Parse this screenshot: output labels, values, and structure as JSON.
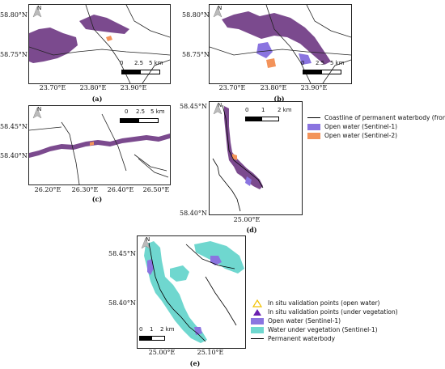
{
  "colors": {
    "sentinel1": "#8a74e0",
    "sentinel2": "#f3935a",
    "overlap": "#7b4a8e",
    "under_vegetation": "#6fd7cf",
    "vegetation_point": "#6a1fb0",
    "open_water_point": "#f2c200",
    "coastline": "#000000"
  },
  "north_label": "N",
  "panels": {
    "a": {
      "label": "(a)",
      "lat_ticks": [
        "58.80°N",
        "58.75°N"
      ],
      "lon_ticks": [
        "23.70°E",
        "23.80°E",
        "23.90°E"
      ],
      "scale_ticks": [
        "0",
        "2.5",
        "5 km"
      ]
    },
    "b": {
      "label": "(b)",
      "lat_ticks": [
        "58.80°N",
        "58.75°N"
      ],
      "lon_ticks": [
        "23.70°E",
        "23.80°E",
        "23.90°E"
      ],
      "scale_ticks": [
        "0",
        "2.5",
        "5 km"
      ]
    },
    "c": {
      "label": "(c)",
      "lat_ticks": [
        "58.45°N",
        "58.40°N"
      ],
      "lon_ticks": [
        "26.20°E",
        "26.30°E",
        "26.40°E",
        "26.50°E"
      ],
      "scale_ticks": [
        "0",
        "2.5",
        "5 km"
      ]
    },
    "d": {
      "label": "(d)",
      "lat_ticks": [
        "58.45°N",
        "58.40°N"
      ],
      "lon_ticks": [
        "25.00°E"
      ],
      "scale_ticks": [
        "0",
        "1",
        "2 km"
      ]
    },
    "e": {
      "label": "(e)",
      "lat_ticks": [
        "58.45°N",
        "58.40°N"
      ],
      "lon_ticks": [
        "25.00°E",
        "25.10°E"
      ],
      "scale_ticks": [
        "0",
        "1",
        "2 km"
      ]
    }
  },
  "legend_top": [
    "Coastline of permanent waterbody (from ETD)",
    "Open water (Sentinel-1)",
    "Open water (Sentinel-2)"
  ],
  "legend_bottom": [
    "In situ validation points (open water)",
    "In situ validation points (under vegetation)",
    "Open water (Sentinel-1)",
    "Water under vegetation (Sentinel-1)",
    "Permanent waterbody"
  ]
}
